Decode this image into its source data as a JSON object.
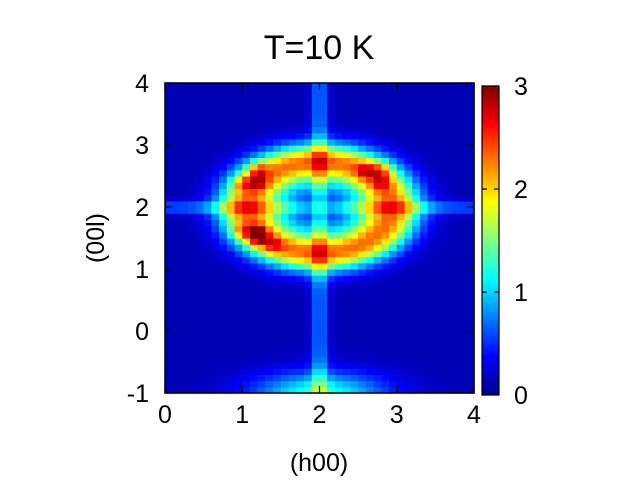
{
  "chart_data": {
    "type": "heatmap",
    "title": "T=10 K",
    "xlabel": "(h00)",
    "ylabel": "(00l)",
    "xlim": [
      0,
      4
    ],
    "ylim": [
      -1,
      4
    ],
    "xticks": [
      "0",
      "1",
      "2",
      "3",
      "4"
    ],
    "yticks": [
      "-1",
      "0",
      "1",
      "2",
      "3",
      "4"
    ],
    "colorbar": {
      "range": [
        0,
        3
      ],
      "ticks": [
        "0",
        "1",
        "2",
        "3"
      ],
      "colormap": "jet"
    },
    "grid": [
      40,
      50
    ],
    "features": {
      "ring": {
        "center": [
          2.0,
          2.0
        ],
        "radius_h": 0.95,
        "radius_l": 0.75,
        "peak_intensity": 1.9
      },
      "center_dip": {
        "center": [
          2.0,
          2.0
        ],
        "intensity": 1.1
      },
      "lower_ring_edge": {
        "center_l": -1.0,
        "intensity": 1.1
      },
      "hot_spots": [
        {
          "h": 1.0,
          "l": 2.4,
          "intensity": 2.3
        },
        {
          "h": 1.2,
          "l": 2.6,
          "intensity": 2.4
        },
        {
          "h": 1.2,
          "l": 2.4,
          "intensity": 2.3
        },
        {
          "h": 1.0,
          "l": 1.6,
          "intensity": 2.3
        },
        {
          "h": 1.2,
          "l": 1.6,
          "intensity": 2.4
        },
        {
          "h": 1.2,
          "l": 1.5,
          "intensity": 2.4
        },
        {
          "h": 1.4,
          "l": 1.4,
          "intensity": 2.2
        },
        {
          "h": 2.6,
          "l": 2.6,
          "intensity": 2.3
        },
        {
          "h": 2.8,
          "l": 2.6,
          "intensity": 2.3
        },
        {
          "h": 2.8,
          "l": 2.4,
          "intensity": 2.2
        }
      ],
      "streaks": [
        {
          "direction": "vertical",
          "h": 2.0,
          "intensity": 0.6
        },
        {
          "direction": "horizontal",
          "l": 2.0,
          "intensity": 0.5
        }
      ],
      "background": 0.15
    }
  }
}
